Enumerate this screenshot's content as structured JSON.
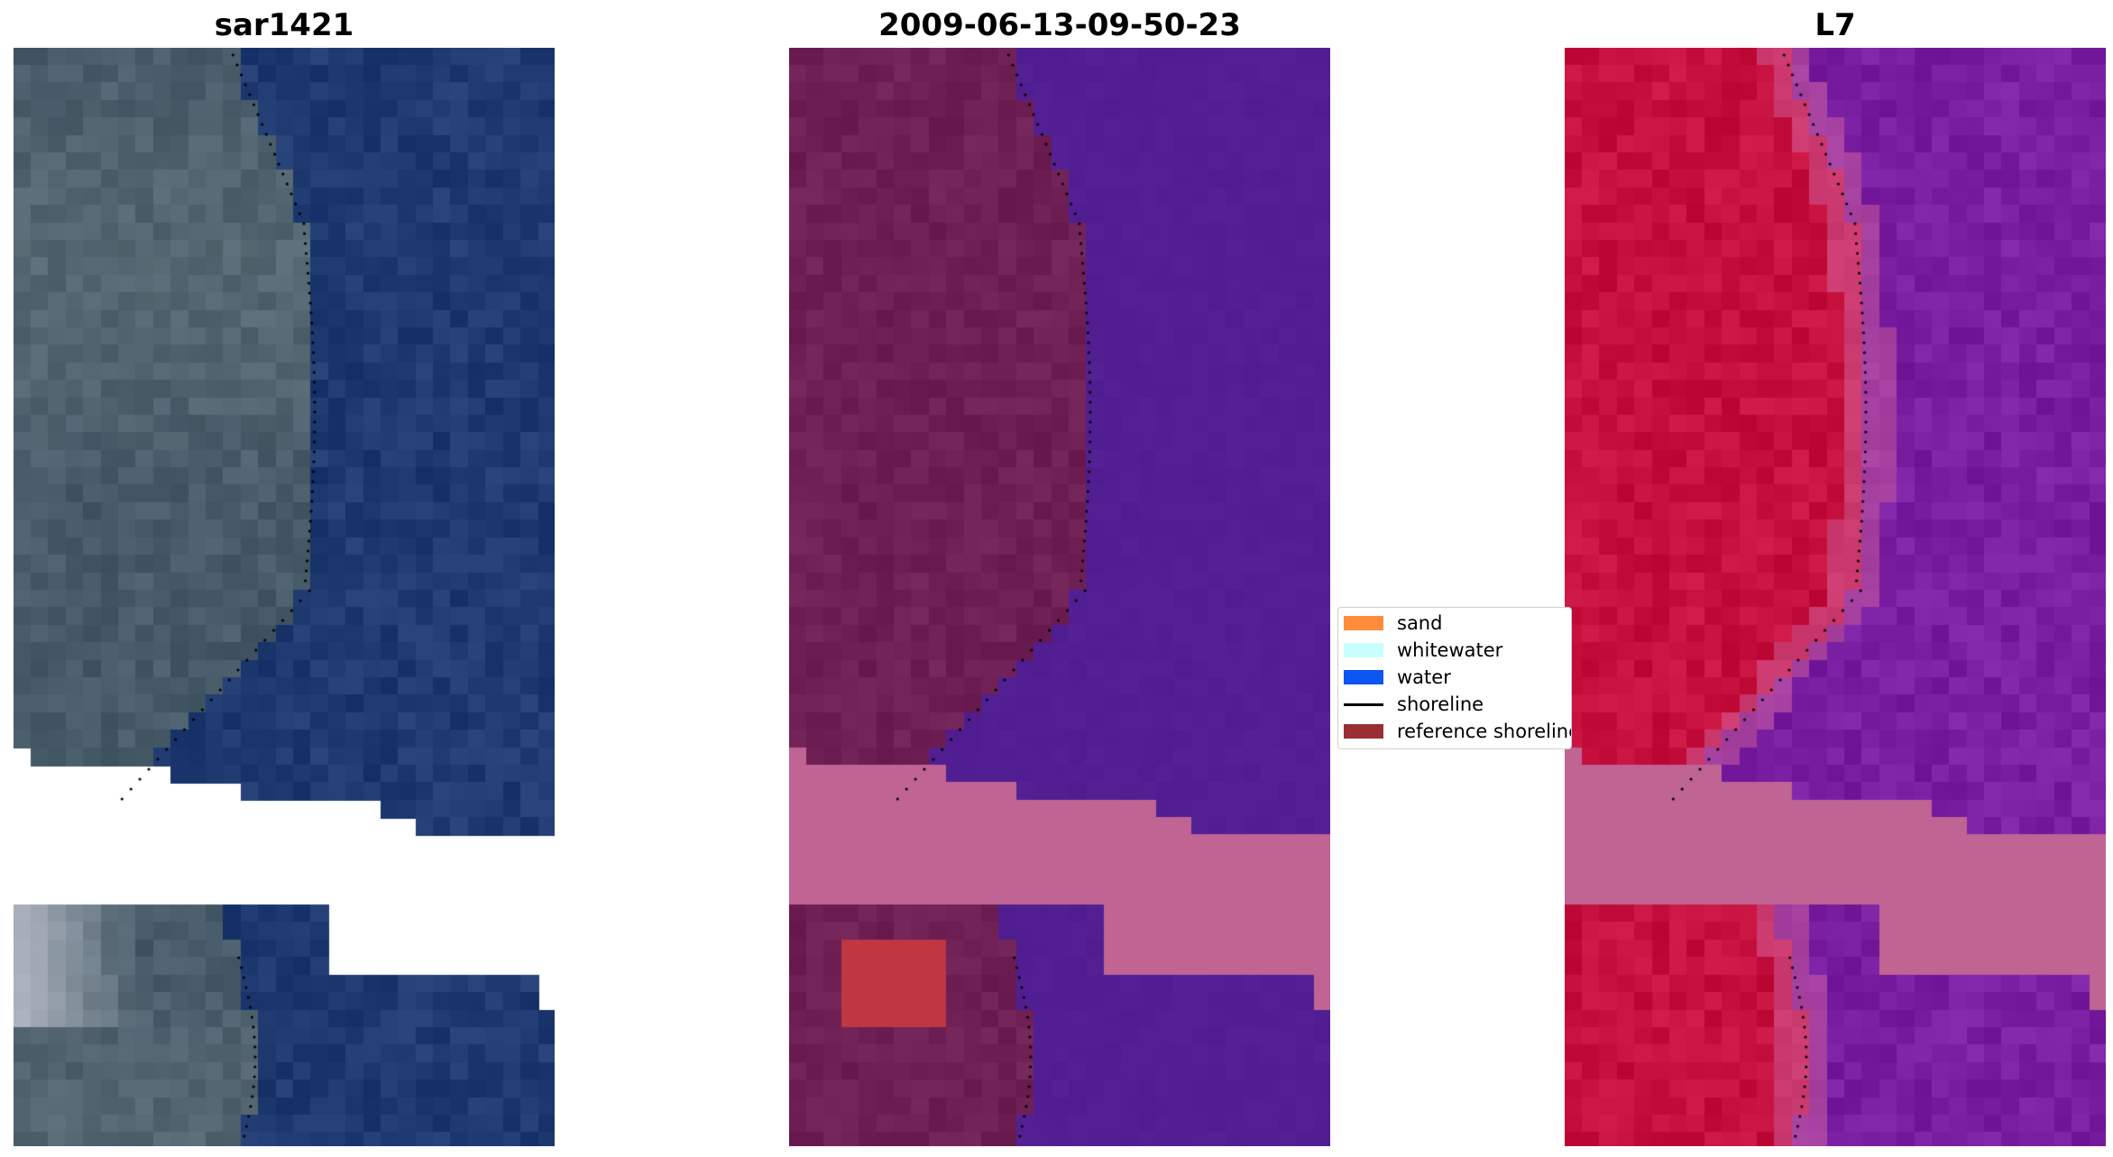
{
  "panels": [
    {
      "title": "sar1421",
      "style": "rgb"
    },
    {
      "title": "2009-06-13-09-50-23",
      "style": "class"
    },
    {
      "title": "L7",
      "style": "index"
    }
  ],
  "legend": {
    "items": [
      {
        "label": "sand",
        "color": "#ff8c3a",
        "kind": "patch"
      },
      {
        "label": "whitewater",
        "color": "#c8ffff",
        "kind": "patch"
      },
      {
        "label": "water",
        "color": "#0b55f2",
        "kind": "patch"
      },
      {
        "label": "shoreline",
        "color": "#000000",
        "kind": "line"
      },
      {
        "label": "reference shoreline",
        "color": "#9a2f33",
        "kind": "patch"
      }
    ]
  },
  "colors": {
    "land_rgb": "#465a68",
    "sea_rgb": "#1f3a70",
    "land_class": "#6e2055",
    "sea_class": "#521f93",
    "cloud_mask": "#bf6493",
    "land_index": "#c5103d",
    "sea_index": "#7a1ea1",
    "shoreline": "#000000"
  }
}
